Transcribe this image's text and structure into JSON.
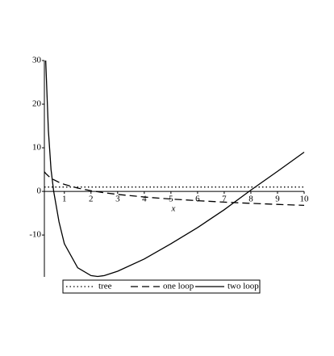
{
  "chart_data": {
    "type": "line",
    "x_label": "x",
    "x": [
      0.25,
      0.3,
      0.4,
      0.5,
      0.6,
      0.8,
      1,
      1.5,
      2,
      2.25,
      2.5,
      3,
      4,
      5,
      6,
      7,
      8,
      9,
      10
    ],
    "series": [
      {
        "name": "tree",
        "color": "#000000",
        "dash": "dotted",
        "values": [
          1,
          1,
          1,
          1,
          1,
          1,
          1,
          1,
          1,
          1,
          1,
          1,
          1,
          1,
          1,
          1,
          1,
          1,
          1
        ]
      },
      {
        "name": "one loop",
        "color": "#000000",
        "dash": "dashed",
        "values": [
          4.51,
          4.13,
          3.53,
          3.06,
          2.68,
          2.08,
          1.61,
          0.76,
          0.16,
          -0.08,
          -0.31,
          -0.69,
          -1.29,
          -1.75,
          -2.13,
          -2.46,
          -2.74,
          -2.98,
          -3.2
        ]
      },
      {
        "name": "two loop",
        "color": "#000000",
        "dash": "solid",
        "values": [
          null,
          30,
          14,
          5,
          0,
          -7,
          -12,
          -17.5,
          -19.3,
          -19.5,
          -19.3,
          -18.3,
          -15.5,
          -12,
          -8.3,
          -4.2,
          0.3,
          4.6,
          9
        ]
      }
    ],
    "xlim": [
      0.25,
      10
    ],
    "ylim": [
      -19.6,
      30
    ],
    "xticks": [
      1,
      2,
      3,
      4,
      5,
      6,
      7,
      8,
      9,
      10
    ],
    "yticks": [
      30,
      20,
      10,
      0,
      -10
    ],
    "legend": "bottom"
  }
}
